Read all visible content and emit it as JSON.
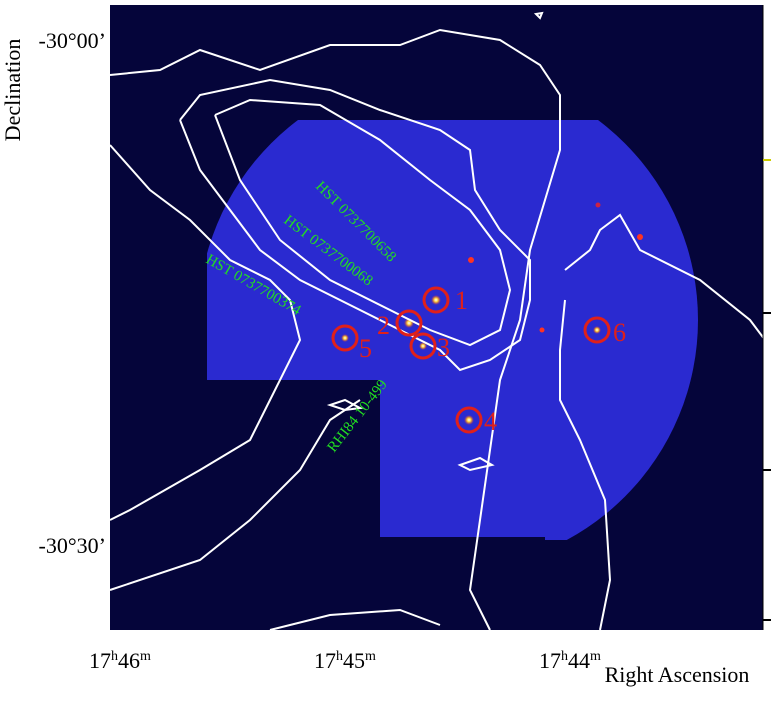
{
  "axes": {
    "y_label": "Declination",
    "x_label": "Right Ascension",
    "y_ticks": [
      "-30°00’",
      "-30°30’"
    ],
    "x_ticks": [
      [
        "17",
        "h",
        "46",
        "m"
      ],
      [
        "17",
        "h",
        "45",
        "m"
      ],
      [
        "17",
        "h",
        "44",
        "m"
      ]
    ]
  },
  "sources": [
    "1",
    "2",
    "3",
    "4",
    "5",
    "6"
  ],
  "annotations": [
    "HST 0737700658",
    "HST 0737700068",
    "HST 0737700374",
    "RHI84 10-499"
  ]
}
